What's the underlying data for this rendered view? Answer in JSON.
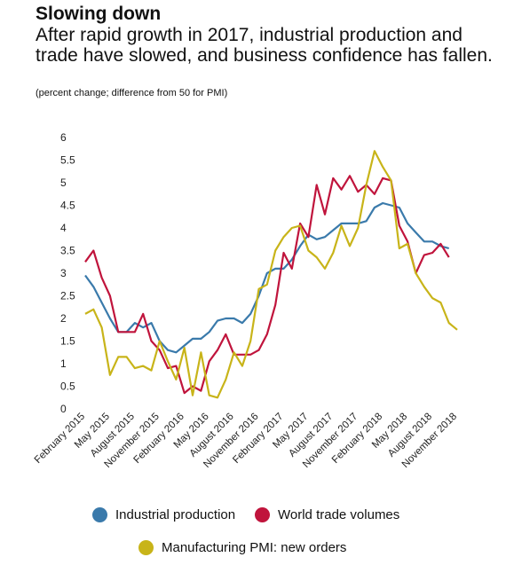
{
  "title": "Slowing down",
  "subtitle": "After rapid growth in 2017, industrial production and trade have slowed, and business confidence has fallen.",
  "note": "(percent change; difference from 50 for PMI)",
  "chart_data": {
    "type": "line",
    "title": "Slowing down",
    "ylim": [
      0,
      6
    ],
    "yticks": [
      "0",
      "0.5",
      "1",
      "1.5",
      "2",
      "2.5",
      "3",
      "3.5",
      "4",
      "4.5",
      "5",
      "5.5",
      "6"
    ],
    "x": [
      "Feb 2015",
      "Mar 2015",
      "Apr 2015",
      "May 2015",
      "Jun 2015",
      "Jul 2015",
      "Aug 2015",
      "Sep 2015",
      "Oct 2015",
      "Nov 2015",
      "Dec 2015",
      "Jan 2016",
      "Feb 2016",
      "Mar 2016",
      "Apr 2016",
      "May 2016",
      "Jun 2016",
      "Jul 2016",
      "Aug 2016",
      "Sep 2016",
      "Oct 2016",
      "Nov 2016",
      "Dec 2016",
      "Jan 2017",
      "Feb 2017",
      "Mar 2017",
      "Apr 2017",
      "May 2017",
      "Jun 2017",
      "Jul 2017",
      "Aug 2017",
      "Sep 2017",
      "Oct 2017",
      "Nov 2017",
      "Dec 2017",
      "Jan 2018",
      "Feb 2018",
      "Mar 2018",
      "Apr 2018",
      "May 2018",
      "Jun 2018",
      "Jul 2018",
      "Aug 2018",
      "Sep 2018",
      "Oct 2018",
      "Nov 2018"
    ],
    "xtick_labels": [
      {
        "index": 0,
        "label": "February 2015"
      },
      {
        "index": 3,
        "label": "May 2015"
      },
      {
        "index": 6,
        "label": "August 2015"
      },
      {
        "index": 9,
        "label": "November 2015"
      },
      {
        "index": 12,
        "label": "February 2016"
      },
      {
        "index": 15,
        "label": "May 2016"
      },
      {
        "index": 18,
        "label": "August 2016"
      },
      {
        "index": 21,
        "label": "November 2016"
      },
      {
        "index": 24,
        "label": "February 2017"
      },
      {
        "index": 27,
        "label": "May 2017"
      },
      {
        "index": 30,
        "label": "August 2017"
      },
      {
        "index": 33,
        "label": "November 2017"
      },
      {
        "index": 36,
        "label": "February 2018"
      },
      {
        "index": 39,
        "label": "May 2018"
      },
      {
        "index": 42,
        "label": "August 2018"
      },
      {
        "index": 45,
        "label": "November 2018"
      }
    ],
    "series": [
      {
        "name": "Industrial production",
        "color": "#3a7aab",
        "values": [
          2.95,
          2.7,
          2.35,
          2.0,
          1.7,
          1.7,
          1.9,
          1.8,
          1.9,
          1.5,
          1.3,
          1.25,
          1.4,
          1.55,
          1.55,
          1.7,
          1.95,
          2.0,
          2.0,
          1.9,
          2.1,
          2.5,
          3.0,
          3.1,
          3.1,
          3.3,
          3.6,
          3.85,
          3.75,
          3.8,
          3.95,
          4.1,
          4.1,
          4.1,
          4.15,
          4.45,
          4.55,
          4.5,
          4.45,
          4.1,
          3.9,
          3.7,
          3.7,
          3.6,
          3.55,
          null
        ]
      },
      {
        "name": "World trade volumes",
        "color": "#c0143c",
        "values": [
          3.25,
          3.5,
          2.9,
          2.5,
          1.7,
          1.7,
          1.7,
          2.1,
          1.5,
          1.3,
          0.9,
          0.95,
          0.35,
          0.5,
          0.4,
          1.05,
          1.3,
          1.65,
          1.2,
          1.2,
          1.2,
          1.3,
          1.65,
          2.3,
          3.45,
          3.1,
          4.1,
          3.8,
          4.95,
          4.3,
          5.1,
          4.85,
          5.15,
          4.8,
          4.95,
          4.75,
          5.1,
          5.05,
          4.05,
          3.7,
          3.0,
          3.4,
          3.45,
          3.65,
          3.35,
          null
        ]
      },
      {
        "name": "Manufacturing PMI: new orders",
        "color": "#c8b419",
        "values": [
          2.1,
          2.2,
          1.8,
          0.75,
          1.15,
          1.15,
          0.9,
          0.95,
          0.85,
          1.5,
          1.05,
          0.65,
          1.35,
          0.3,
          1.25,
          0.3,
          0.25,
          0.65,
          1.25,
          0.95,
          1.5,
          2.65,
          2.75,
          3.5,
          3.8,
          4.0,
          4.05,
          3.5,
          3.35,
          3.1,
          3.45,
          4.05,
          3.6,
          4.0,
          4.95,
          5.7,
          5.35,
          5.05,
          3.55,
          3.65,
          3.0,
          2.7,
          2.45,
          2.35,
          1.9,
          1.75
        ]
      }
    ]
  },
  "legend": [
    {
      "label": "Industrial production",
      "color": "#3a7aab"
    },
    {
      "label": "World trade volumes",
      "color": "#c0143c"
    },
    {
      "label": "Manufacturing PMI: new orders",
      "color": "#c8b419"
    }
  ]
}
